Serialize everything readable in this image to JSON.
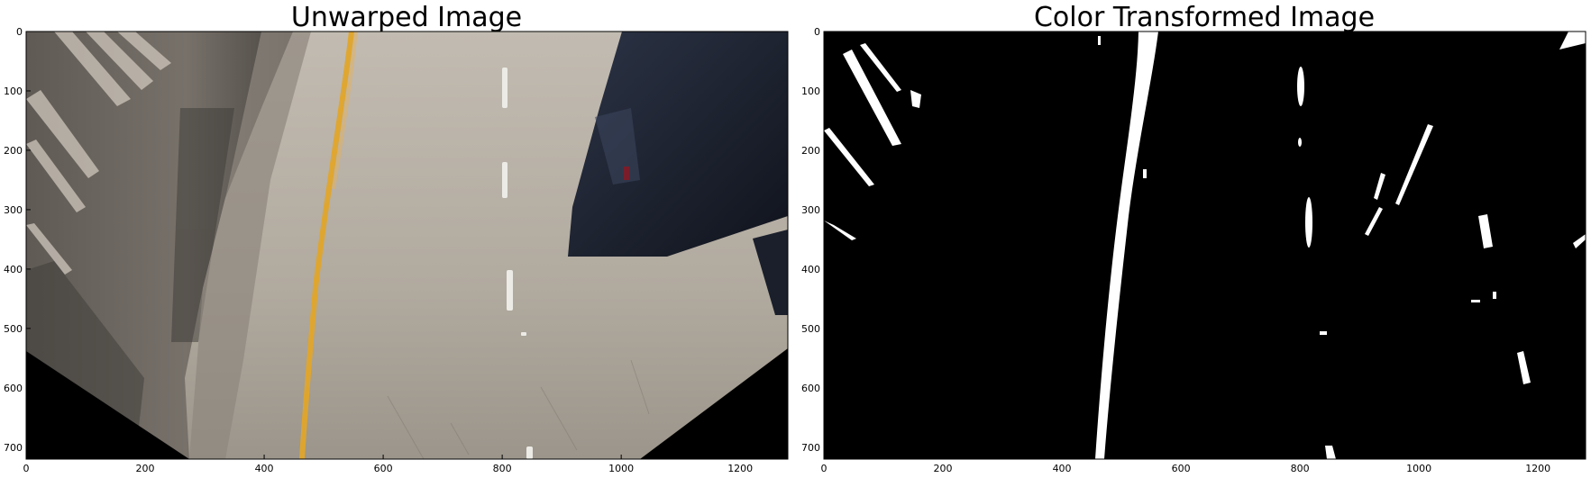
{
  "panels": [
    {
      "id": "unwarped",
      "title": "Unwarped Image",
      "x_ticks": [
        "0",
        "200",
        "400",
        "600",
        "800",
        "1000",
        "1200"
      ],
      "y_ticks": [
        "0",
        "100",
        "200",
        "300",
        "400",
        "500",
        "600",
        "700"
      ],
      "x_range": [
        0,
        1280
      ],
      "y_range": [
        0,
        720
      ],
      "image": {
        "description_colors": {
          "road": "#b3aca2",
          "road_dark": "#8a857d",
          "wall": "#6b6660",
          "wall_stripe": "#cfc7bd",
          "yellow_line": "#e0a52a",
          "car": "#1c2232",
          "black_corner": "#000000"
        }
      }
    },
    {
      "id": "color_transformed",
      "title": "Color Transformed Image",
      "x_ticks": [
        "0",
        "200",
        "400",
        "600",
        "800",
        "1000",
        "1200"
      ],
      "y_ticks": [
        "0",
        "100",
        "200",
        "300",
        "400",
        "500",
        "600",
        "700"
      ],
      "x_range": [
        0,
        1280
      ],
      "y_range": [
        0,
        720
      ],
      "image": {
        "description_colors": {
          "background": "#000000",
          "lane_pixels": "#ffffff"
        }
      }
    }
  ]
}
